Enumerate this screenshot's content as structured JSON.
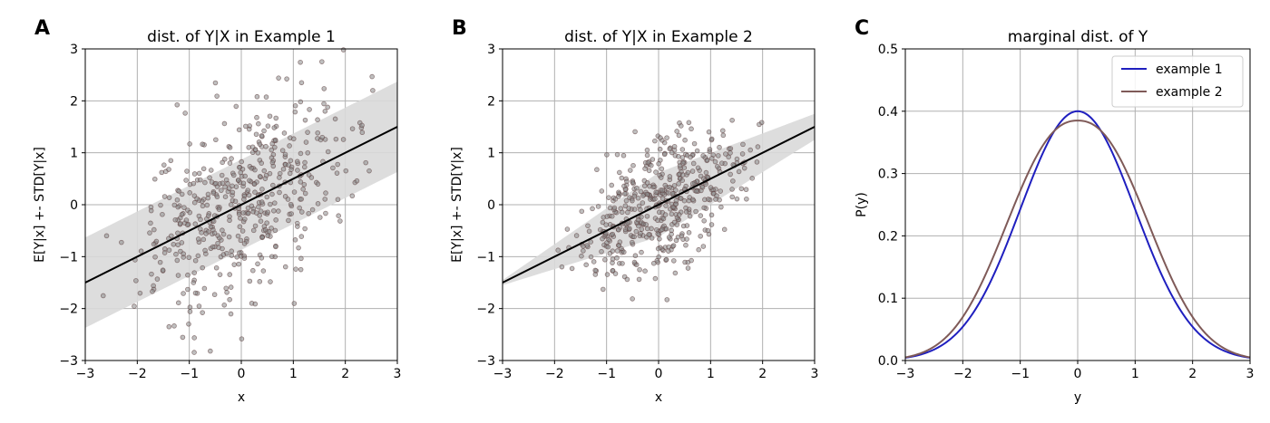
{
  "chart_data": [
    {
      "type": "scatter",
      "panel_letter": "A",
      "title": "dist. of Y|X in Example 1",
      "xlabel": "x",
      "ylabel": "E[Y|x] +- STD[Y|x]",
      "xlim": [
        -3,
        3
      ],
      "ylim": [
        -3,
        3
      ],
      "xticks": [
        "−3",
        "−2",
        "−1",
        "0",
        "1",
        "2",
        "3"
      ],
      "yticks": [
        "3",
        "2",
        "1",
        "0",
        "−1",
        "−2",
        "−3"
      ],
      "grid": true,
      "mean_line": {
        "slope": 0.5,
        "intercept": 0,
        "color": "#000000"
      },
      "band": {
        "center_slope": 0.5,
        "halfwidth_at_x_min": 0.87,
        "halfwidth_at_x_max": 0.87,
        "color": "#d9d9d9"
      },
      "points": {
        "count": 500,
        "x_sd": 1.0,
        "slope": 0.5,
        "noise_sd": 0.87,
        "color": "#8a8a8a",
        "edge_color": "#5a3a3a"
      }
    },
    {
      "type": "scatter",
      "panel_letter": "B",
      "title": "dist. of Y|X in Example 2",
      "xlabel": "x",
      "ylabel": "E[Y|x] +- STD[Y|x]",
      "xlim": [
        -3,
        3
      ],
      "ylim": [
        -3,
        3
      ],
      "xticks": [
        "−3",
        "−2",
        "−1",
        "0",
        "1",
        "2",
        "3"
      ],
      "yticks": [
        "3",
        "2",
        "1",
        "0",
        "−1",
        "−2",
        "−3"
      ],
      "grid": true,
      "mean_line": {
        "slope": 0.5,
        "intercept": 0,
        "color": "#000000"
      },
      "band": {
        "center_slope": 0.5,
        "halfwidth_at_x_min": 0.05,
        "halfwidth_at_x_max": 0.25,
        "heteroscedastic": true,
        "color": "#d9d9d9"
      },
      "points": {
        "count": 500,
        "x_sd": 0.8,
        "slope": 0.5,
        "noise_sd_at_x0": 0.6,
        "heteroscedastic": true,
        "color": "#8a8a8a",
        "edge_color": "#5a3a3a"
      }
    },
    {
      "type": "line",
      "panel_letter": "C",
      "title": "marginal dist. of Y",
      "xlabel": "y",
      "ylabel": "P(y)",
      "xlim": [
        -3,
        3
      ],
      "ylim": [
        0,
        0.5
      ],
      "xticks": [
        "−3",
        "−2",
        "−1",
        "0",
        "1",
        "2",
        "3"
      ],
      "yticks": [
        "0.5",
        "0.4",
        "0.3",
        "0.2",
        "0.1",
        "0.0"
      ],
      "grid": true,
      "legend_position": "top-right",
      "series": [
        {
          "name": "example 1",
          "color": "#1f1fbf",
          "peak": 0.4,
          "sd": 1.0
        },
        {
          "name": "example 2",
          "color": "#7f5a58",
          "peak": 0.385,
          "sd": 0.97,
          "flat_top": true
        }
      ]
    }
  ]
}
